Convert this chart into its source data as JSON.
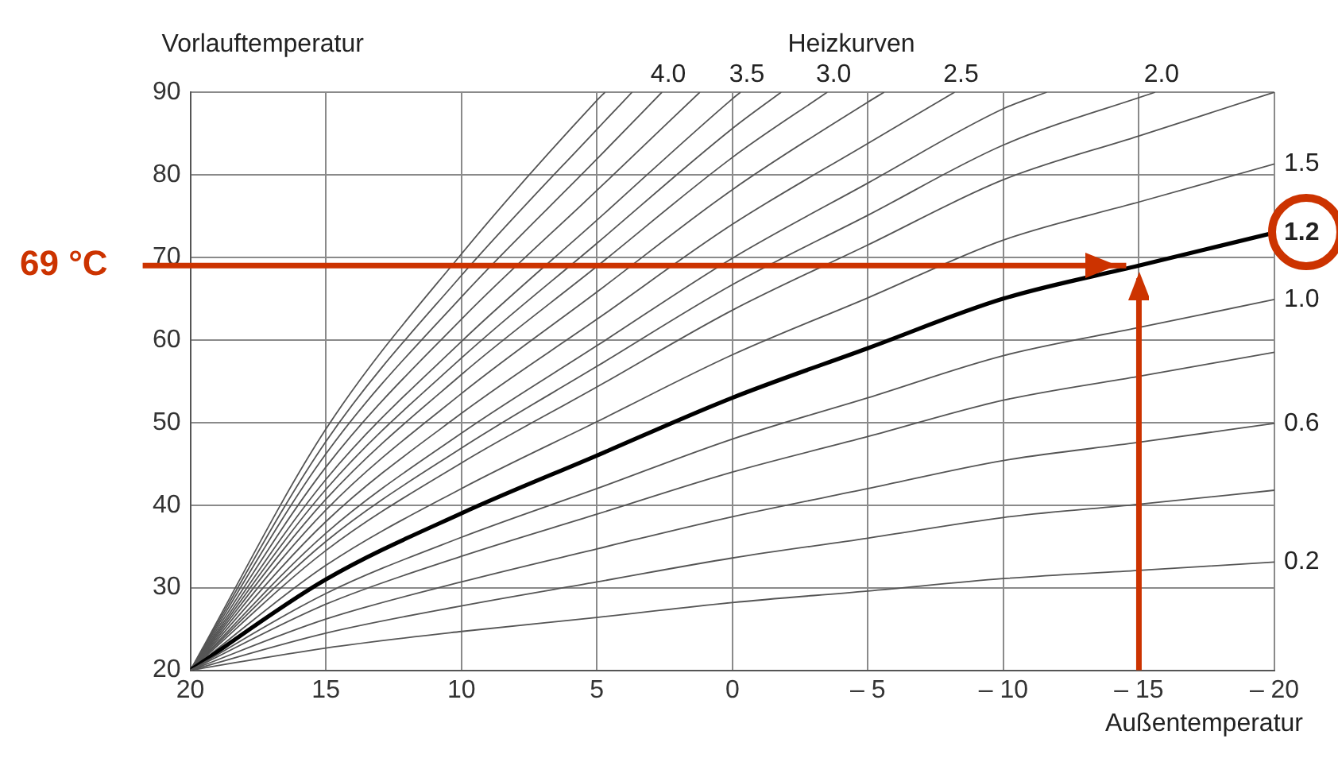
{
  "chart_data": {
    "type": "line",
    "ylabel": "Vorlauftemperatur",
    "xlabel": "Außentemperatur",
    "legend_title": "Heizkurven",
    "xlim": [
      20,
      -20
    ],
    "xticks": [
      20,
      15,
      10,
      5,
      0,
      {
        "value": -5,
        "label": "– 5"
      },
      {
        "value": -10,
        "label": "– 10"
      },
      {
        "value": -15,
        "label": "– 15"
      },
      {
        "value": -20,
        "label": "– 20"
      }
    ],
    "ylim": [
      20,
      90
    ],
    "yticks": [
      20,
      30,
      40,
      50,
      60,
      70,
      80,
      90
    ],
    "grid": true,
    "marker": "none",
    "line_style": "solid",
    "series": [
      {
        "name": "0.2",
        "color": "#555555",
        "x": [
          20,
          15,
          10,
          5,
          0,
          -5,
          -10,
          -15,
          -20
        ],
        "values": [
          20,
          22.7,
          24.7,
          26.4,
          28.2,
          29.6,
          31.1,
          32.1,
          33.1
        ]
      },
      {
        "color": "#555555",
        "x": [
          20,
          15,
          10,
          5,
          0,
          -5,
          -10,
          -15,
          -20
        ],
        "values": [
          20,
          24.5,
          27.8,
          30.7,
          33.6,
          36,
          38.5,
          40.1,
          41.8
        ]
      },
      {
        "name": "0.6",
        "color": "#555555",
        "x": [
          20,
          15,
          10,
          5,
          0,
          -5,
          -10,
          -15,
          -20
        ],
        "values": [
          20,
          26.2,
          30.7,
          34.7,
          38.6,
          42,
          45.4,
          47.6,
          49.9
        ]
      },
      {
        "color": "#555555",
        "x": [
          20,
          15,
          10,
          5,
          0,
          -5,
          -10,
          -15,
          -20
        ],
        "values": [
          20,
          28,
          33.8,
          38.9,
          44,
          48.3,
          52.7,
          55.6,
          58.5
        ]
      },
      {
        "name": "1.0",
        "color": "#555555",
        "x": [
          20,
          15,
          10,
          5,
          0,
          -5,
          -10,
          -15,
          -20
        ],
        "values": [
          20,
          29.3,
          36.1,
          42,
          48,
          53,
          58.1,
          61.5,
          64.9
        ]
      },
      {
        "name": "1.2",
        "color": "#000000",
        "x": [
          20,
          15,
          10,
          5,
          0,
          -5,
          -10,
          -15,
          -20
        ],
        "values": [
          20,
          31,
          39,
          46,
          53,
          59,
          65,
          69,
          73
        ]
      },
      {
        "name": "1.5",
        "color": "#555555",
        "x": [
          20,
          15,
          10,
          5,
          0,
          -5,
          -10,
          -15,
          -20
        ],
        "values": [
          20,
          32.7,
          42,
          50.1,
          58.2,
          65.1,
          72.1,
          76.7,
          81.3
        ]
      },
      {
        "color": "#555555",
        "x": [
          20,
          15,
          10,
          5,
          0,
          -5,
          -10,
          -15,
          -20
        ],
        "values": [
          20,
          34.5,
          45.1,
          54.3,
          63.6,
          71.5,
          79.4,
          84.7,
          90
        ]
      },
      {
        "name": "2.0",
        "color": "#555555",
        "x": [
          20,
          15,
          10,
          5,
          0,
          -5,
          -10,
          -15.6
        ],
        "values": [
          20,
          35.6,
          46.9,
          56.8,
          66.7,
          75.1,
          83.6,
          90
        ]
      },
      {
        "color": "#555555",
        "x": [
          20,
          15,
          10,
          5,
          0,
          -5,
          -10,
          -11.6
        ],
        "values": [
          20,
          36.6,
          48.7,
          59.3,
          69.9,
          79,
          88,
          90
        ]
      },
      {
        "name": "2.5",
        "color": "#555555",
        "x": [
          20,
          15,
          10,
          5,
          0,
          -5,
          -8.2
        ],
        "values": [
          20,
          38,
          51.1,
          62.5,
          74,
          83.8,
          90
        ]
      },
      {
        "color": "#555555",
        "x": [
          20,
          15,
          10,
          5,
          0,
          -5,
          -5.6
        ],
        "values": [
          20,
          39.4,
          53.5,
          65.8,
          78.2,
          88.8,
          90
        ]
      },
      {
        "name": "3.0",
        "color": "#555555",
        "x": [
          20,
          15,
          10,
          5,
          0,
          -3.5
        ],
        "values": [
          20,
          40.7,
          55.8,
          68.9,
          82.1,
          90
        ]
      },
      {
        "color": "#555555",
        "x": [
          20,
          15,
          10,
          5,
          0,
          -1.8
        ],
        "values": [
          20,
          41.9,
          57.8,
          71.7,
          85.6,
          90
        ]
      },
      {
        "name": "3.5",
        "color": "#555555",
        "x": [
          20,
          15,
          10,
          5,
          0,
          -0.3
        ],
        "values": [
          20,
          43.1,
          59.8,
          74.5,
          89.2,
          90
        ]
      },
      {
        "color": "#555555",
        "x": [
          20,
          15,
          10,
          5,
          1.2
        ],
        "values": [
          20,
          44.6,
          62.5,
          78.1,
          90
        ]
      },
      {
        "name": "4.0",
        "color": "#555555",
        "x": [
          20,
          15,
          10,
          5,
          2.6
        ],
        "values": [
          20,
          46.2,
          65.2,
          81.9,
          90
        ]
      },
      {
        "color": "#555555",
        "x": [
          20,
          15,
          10,
          5,
          3.7
        ],
        "values": [
          20,
          47.7,
          67.8,
          85.5,
          90
        ]
      },
      {
        "color": "#555555",
        "x": [
          20,
          15,
          10,
          5,
          4.7
        ],
        "values": [
          20,
          49.2,
          70.4,
          89,
          90
        ]
      }
    ],
    "ref_lines": [
      {
        "axis": "y",
        "value": 69,
        "label": "69 °C",
        "color": "#cc3300",
        "line_style": "solid"
      },
      {
        "axis": "x",
        "value": -15,
        "label": null,
        "color": "#cc3300",
        "line_style": "solid"
      }
    ]
  }
}
